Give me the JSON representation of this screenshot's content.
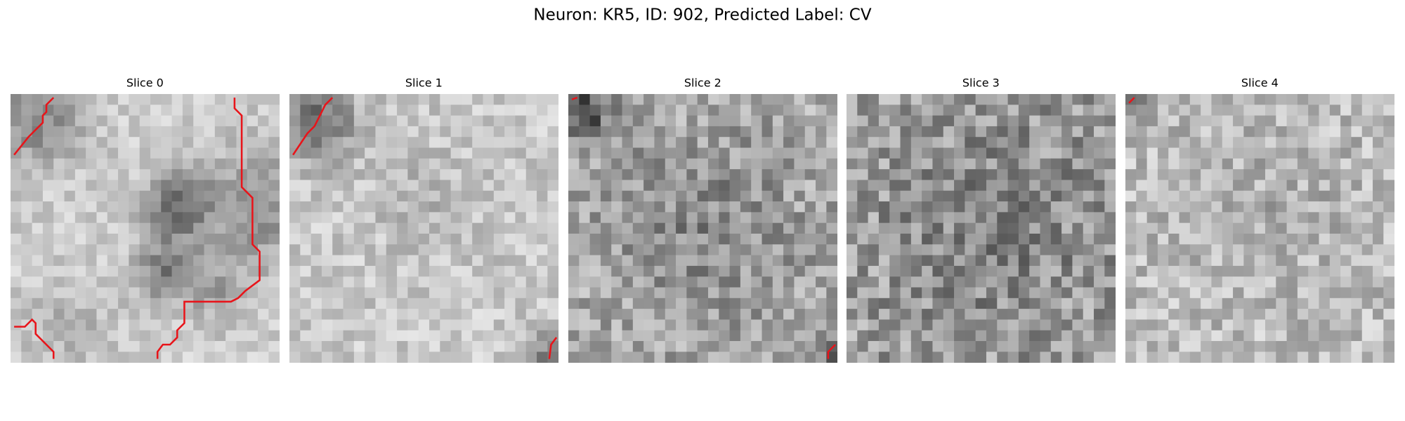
{
  "figure": {
    "title": "Neuron: KR5, ID: 902, Predicted Label: CV",
    "panels": [
      {
        "title": "Slice 0"
      },
      {
        "title": "Slice 1"
      },
      {
        "title": "Slice 2"
      },
      {
        "title": "Slice 3"
      },
      {
        "title": "Slice 4"
      }
    ]
  }
}
